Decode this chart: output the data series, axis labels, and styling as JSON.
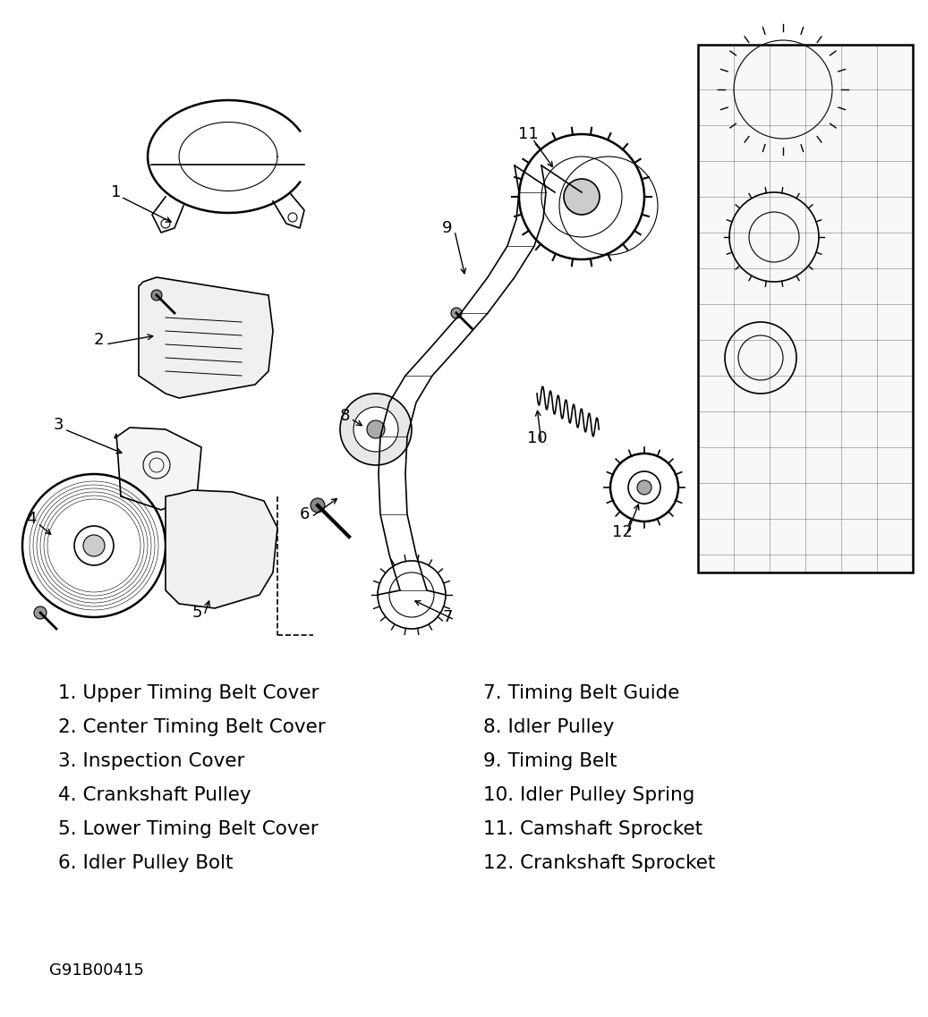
{
  "background_color": "#ffffff",
  "legend_left": [
    "1. Upper Timing Belt Cover",
    "2. Center Timing Belt Cover",
    "3. Inspection Cover",
    "4. Crankshaft Pulley",
    "5. Lower Timing Belt Cover",
    "6. Idler Pulley Bolt"
  ],
  "legend_right": [
    "7. Timing Belt Guide",
    "8. Idler Pulley",
    "9. Timing Belt",
    "10. Idler Pulley Spring",
    "11. Camshaft Sprocket",
    "12. Crankshaft Sprocket"
  ],
  "catalog_number": "G91B00415",
  "text_color": "#000000",
  "legend_fontsize": 15.5,
  "catalog_fontsize": 13,
  "fig_width": 10.37,
  "fig_height": 11.37,
  "dpi": 100
}
